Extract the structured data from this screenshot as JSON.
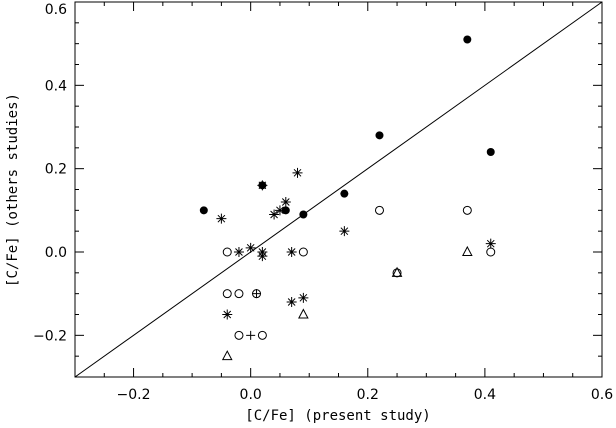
{
  "chart_data": {
    "type": "scatter",
    "title": "",
    "xlabel": "[C/Fe] (present study)",
    "ylabel": "[C/Fe] (others studies)",
    "xlim": [
      -0.3,
      0.6
    ],
    "ylim": [
      -0.3,
      0.6
    ],
    "xticks": [
      -0.2,
      0.0,
      0.2,
      0.4,
      0.6
    ],
    "xtick_labels": [
      "−0.2",
      "0.0",
      "0.2",
      "0.4",
      "0.6"
    ],
    "yticks": [
      -0.2,
      0.0,
      0.2,
      0.4,
      0.6
    ],
    "ytick_labels": [
      "−0.2",
      "0.0",
      "0.2",
      "0.4",
      "0.6"
    ],
    "reference_line": {
      "x": [
        -0.3,
        0.6
      ],
      "y": [
        -0.3,
        0.6
      ]
    },
    "grid": false,
    "legend": "none",
    "series": [
      {
        "marker": "filled-circle",
        "points": [
          {
            "x": -0.08,
            "y": 0.1
          },
          {
            "x": 0.02,
            "y": 0.16
          },
          {
            "x": 0.06,
            "y": 0.1
          },
          {
            "x": 0.09,
            "y": 0.09
          },
          {
            "x": 0.16,
            "y": 0.14
          },
          {
            "x": 0.22,
            "y": 0.28
          },
          {
            "x": 0.37,
            "y": 0.51
          },
          {
            "x": 0.41,
            "y": 0.24
          }
        ]
      },
      {
        "marker": "open-circle",
        "points": [
          {
            "x": -0.04,
            "y": 0.0
          },
          {
            "x": 0.09,
            "y": 0.0
          },
          {
            "x": -0.04,
            "y": -0.1
          },
          {
            "x": -0.02,
            "y": -0.1
          },
          {
            "x": 0.01,
            "y": -0.1
          },
          {
            "x": -0.02,
            "y": -0.2
          },
          {
            "x": 0.02,
            "y": -0.2
          },
          {
            "x": 0.22,
            "y": 0.1
          },
          {
            "x": 0.25,
            "y": -0.05
          },
          {
            "x": 0.37,
            "y": 0.1
          },
          {
            "x": 0.41,
            "y": 0.0
          }
        ]
      },
      {
        "marker": "asterisk",
        "points": [
          {
            "x": -0.05,
            "y": 0.08
          },
          {
            "x": -0.02,
            "y": 0.0
          },
          {
            "x": 0.0,
            "y": 0.01
          },
          {
            "x": 0.02,
            "y": 0.0
          },
          {
            "x": 0.02,
            "y": -0.01
          },
          {
            "x": 0.02,
            "y": 0.16
          },
          {
            "x": 0.04,
            "y": 0.09
          },
          {
            "x": 0.05,
            "y": 0.1
          },
          {
            "x": 0.06,
            "y": 0.12
          },
          {
            "x": 0.07,
            "y": 0.0
          },
          {
            "x": 0.08,
            "y": 0.19
          },
          {
            "x": 0.16,
            "y": 0.05
          },
          {
            "x": -0.04,
            "y": -0.15
          },
          {
            "x": 0.07,
            "y": -0.12
          },
          {
            "x": 0.09,
            "y": -0.11
          },
          {
            "x": 0.41,
            "y": 0.02
          }
        ]
      },
      {
        "marker": "plus",
        "points": [
          {
            "x": 0.0,
            "y": -0.2
          },
          {
            "x": 0.01,
            "y": -0.1
          }
        ]
      },
      {
        "marker": "open-triangle",
        "points": [
          {
            "x": -0.04,
            "y": -0.25
          },
          {
            "x": 0.09,
            "y": -0.15
          },
          {
            "x": 0.25,
            "y": -0.05
          },
          {
            "x": 0.37,
            "y": 0.0
          }
        ]
      }
    ]
  }
}
